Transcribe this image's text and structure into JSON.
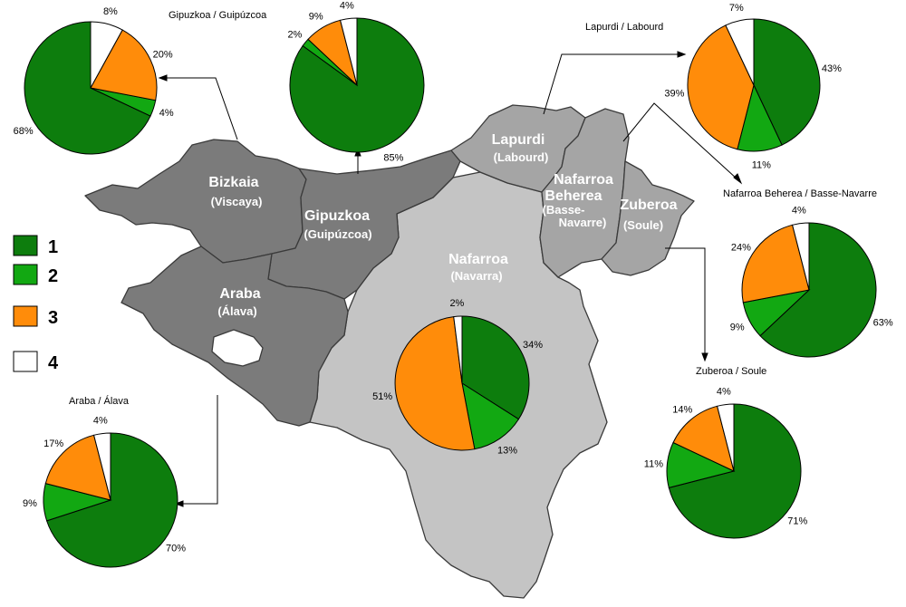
{
  "colors": {
    "c1": "#0d7d0d",
    "c2": "#12a812",
    "c3": "#ff8c0a",
    "c4": "#ffffff",
    "dark_region": "#808080",
    "mid_region": "#a3a3a3",
    "light_region": "#c4c4c4"
  },
  "legend": [
    {
      "label": "1",
      "color": "#0d7d0d"
    },
    {
      "label": "2",
      "color": "#12a812"
    },
    {
      "label": "3",
      "color": "#ff8c0a"
    },
    {
      "label": "4",
      "color": "#ffffff"
    }
  ],
  "regions": [
    {
      "name": "Bizkaia",
      "sub": "(Viscaya)"
    },
    {
      "name": "Gipuzkoa",
      "sub": "(Guipúzcoa)"
    },
    {
      "name": "Araba",
      "sub": "(Álava)"
    },
    {
      "name": "Nafarroa",
      "sub": "(Navarra)"
    },
    {
      "name": "Lapurdi",
      "sub": "(Labourd)"
    },
    {
      "name": "Nafarroa",
      "name2": "Beherea",
      "sub": "(Basse-",
      "sub2": "Navarre)"
    },
    {
      "name": "Zuberoa",
      "sub": "(Soule)"
    }
  ],
  "chart_data": [
    {
      "type": "pie",
      "title": "",
      "labels": [
        "1",
        "2",
        "3",
        "4"
      ],
      "values": [
        68,
        4,
        20,
        8
      ]
    },
    {
      "type": "pie",
      "title": "Gipuzkoa / Guipúzcoa",
      "labels": [
        "1",
        "2",
        "3",
        "4"
      ],
      "values": [
        85,
        2,
        9,
        4
      ]
    },
    {
      "type": "pie",
      "title": "Lapurdi / Labourd",
      "labels": [
        "1",
        "2",
        "3",
        "4"
      ],
      "values": [
        43,
        11,
        39,
        7
      ]
    },
    {
      "type": "pie",
      "title": "Nafarroa Beherea / Basse-Navarre",
      "labels": [
        "1",
        "2",
        "3",
        "4"
      ],
      "values": [
        63,
        9,
        24,
        4
      ]
    },
    {
      "type": "pie",
      "title": "Zuberoa / Soule",
      "labels": [
        "1",
        "2",
        "3",
        "4"
      ],
      "values": [
        71,
        11,
        14,
        4
      ]
    },
    {
      "type": "pie",
      "title": "",
      "labels": [
        "1",
        "2",
        "3",
        "4"
      ],
      "values": [
        34,
        13,
        51,
        2
      ]
    },
    {
      "type": "pie",
      "title": "Araba / Álava",
      "labels": [
        "1",
        "2",
        "3",
        "4"
      ],
      "values": [
        70,
        9,
        17,
        4
      ]
    }
  ]
}
